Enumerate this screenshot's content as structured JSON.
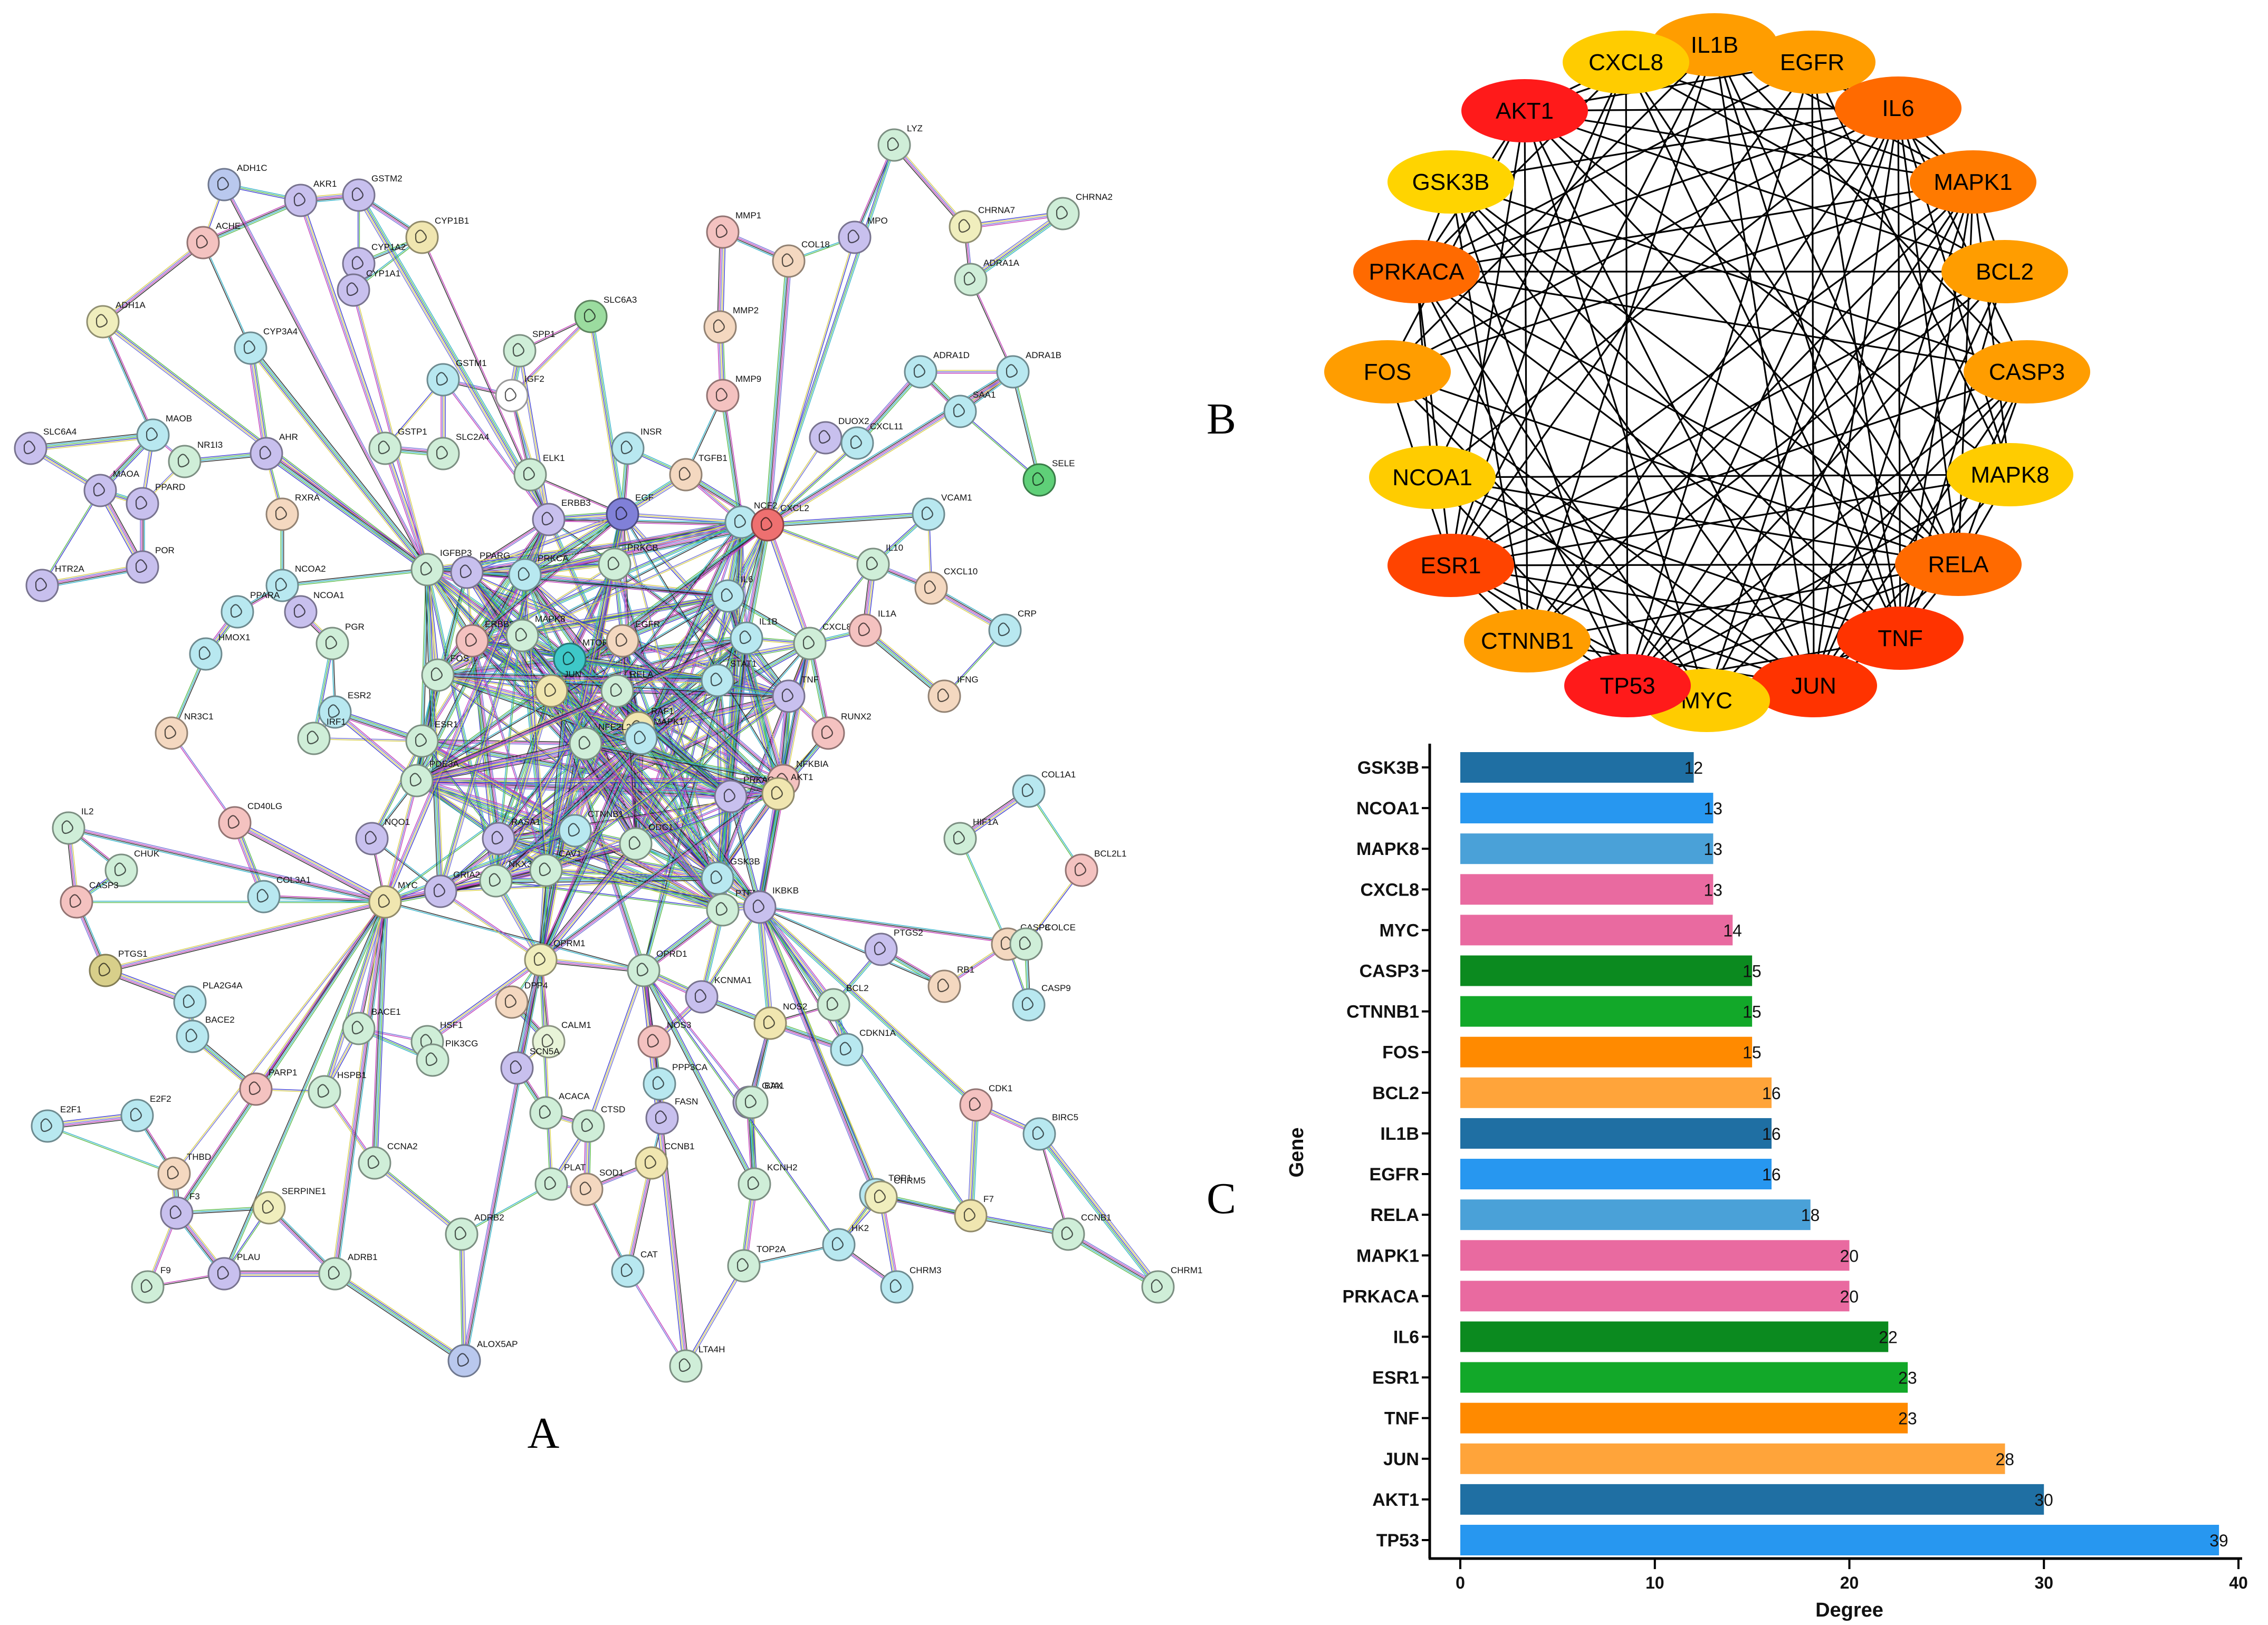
{
  "panels": {
    "a": "A",
    "b": "B",
    "c": "C"
  },
  "network_a": {
    "edge_colors": [
      "#3a3ad0",
      "#2fb0c8",
      "#c23ab8",
      "#d8cf4a",
      "#55b846",
      "#222222",
      "#7070d8"
    ],
    "nodes": [
      {
        "label": "ADH1C",
        "color": "#b9c8ee"
      },
      {
        "label": "ACHE",
        "color": "#f4c2c0"
      },
      {
        "label": "AKR1",
        "color": "#c8c0ee"
      },
      {
        "label": "GSTM2",
        "color": "#c8c0ee"
      },
      {
        "label": "CYP1B1",
        "color": "#f0e6b0"
      },
      {
        "label": "CYP1A2",
        "color": "#c8c0ee"
      },
      {
        "label": "CYP1A1",
        "color": "#c8c0ee"
      },
      {
        "label": "ADH1A",
        "color": "#f0eebd"
      },
      {
        "label": "CYP3A4",
        "color": "#b8e8f0"
      },
      {
        "label": "GSTM1",
        "color": "#b8e8f0"
      },
      {
        "label": "SPP1",
        "color": "#cfeed8"
      },
      {
        "label": "SLC6A3",
        "color": "#9bdc9f"
      },
      {
        "label": "SLC6A4",
        "color": "#c8c0ee"
      },
      {
        "label": "MAOB",
        "color": "#b8e8f0"
      },
      {
        "label": "MAOA",
        "color": "#c8c0ee"
      },
      {
        "label": "NR1I3",
        "color": "#cfeed8"
      },
      {
        "label": "AHR",
        "color": "#c8c0ee"
      },
      {
        "label": "GSTP1",
        "color": "#cfeed8"
      },
      {
        "label": "SLC2A4",
        "color": "#cfeed8"
      },
      {
        "label": "IGF2",
        "color": "#ffffff"
      },
      {
        "label": "INSR",
        "color": "#b8e8f0"
      },
      {
        "label": "HTR2A",
        "color": "#c8c0ee"
      },
      {
        "label": "PPARD",
        "color": "#c8c0ee"
      },
      {
        "label": "RXRA",
        "color": "#f4d8c0"
      },
      {
        "label": "POR",
        "color": "#c8c0ee"
      },
      {
        "label": "ELK1",
        "color": "#cfeed8"
      },
      {
        "label": "ERBB3",
        "color": "#c8c0ee"
      },
      {
        "label": "EGF",
        "color": "#8080d8"
      },
      {
        "label": "TGFB1",
        "color": "#f4d8c0"
      },
      {
        "label": "NCF2",
        "color": "#b8e8f0"
      },
      {
        "label": "CXCL2",
        "color": "#ee7070"
      },
      {
        "label": "DUOX2",
        "color": "#c8c0ee"
      },
      {
        "label": "CXCL11",
        "color": "#b8e8f0"
      },
      {
        "label": "VCAM1",
        "color": "#b8e8f0"
      },
      {
        "label": "SAA1",
        "color": "#b8e8f0"
      },
      {
        "label": "SELE",
        "color": "#5fd078"
      },
      {
        "label": "MMP1",
        "color": "#f4c2c0"
      },
      {
        "label": "COL18",
        "color": "#f4d8c0"
      },
      {
        "label": "MPO",
        "color": "#c8c0ee"
      },
      {
        "label": "LYZ",
        "color": "#cfeed8"
      },
      {
        "label": "MMP2",
        "color": "#f4d8c0"
      },
      {
        "label": "MMP9",
        "color": "#f4c2c0"
      },
      {
        "label": "CHRNA7",
        "color": "#f0eebd"
      },
      {
        "label": "CHRNA2",
        "color": "#cfeed8"
      },
      {
        "label": "ADRA1A",
        "color": "#cfeed8"
      },
      {
        "label": "ADRA1D",
        "color": "#b8e8f0"
      },
      {
        "label": "ADRA1B",
        "color": "#b8e8f0"
      },
      {
        "label": "IGFBP3",
        "color": "#cfeed8"
      },
      {
        "label": "PPARG",
        "color": "#c8c0ee"
      },
      {
        "label": "PRKCA",
        "color": "#b8e8f0"
      },
      {
        "label": "PRKCB",
        "color": "#cfeed8"
      },
      {
        "label": "IL6",
        "color": "#b8e8f0"
      },
      {
        "label": "IL10",
        "color": "#cfeed8"
      },
      {
        "label": "CXCL10",
        "color": "#f4d8c0"
      },
      {
        "label": "NCOA2",
        "color": "#b8e8f0"
      },
      {
        "label": "NCOA1",
        "color": "#c8c0ee"
      },
      {
        "label": "PPARA",
        "color": "#b8e8f0"
      },
      {
        "label": "PGR",
        "color": "#cfeed8"
      },
      {
        "label": "ERBB2",
        "color": "#f4c2c0"
      },
      {
        "label": "MAPK8",
        "color": "#cfeed8"
      },
      {
        "label": "MTOR",
        "color": "#3ec8c8"
      },
      {
        "label": "EGFR",
        "color": "#f4d8c0"
      },
      {
        "label": "IL1B",
        "color": "#b8e8f0"
      },
      {
        "label": "CXCL8",
        "color": "#cfeed8"
      },
      {
        "label": "IL1A",
        "color": "#f4c2c0"
      },
      {
        "label": "CRP",
        "color": "#b8e8f0"
      },
      {
        "label": "HMOX1",
        "color": "#b8e8f0"
      },
      {
        "label": "FOS",
        "color": "#cfeed8"
      },
      {
        "label": "JUN",
        "color": "#f0e6b0"
      },
      {
        "label": "RELA",
        "color": "#cfeed8"
      },
      {
        "label": "STAT1",
        "color": "#b8e8f0"
      },
      {
        "label": "TNF",
        "color": "#c8c0ee"
      },
      {
        "label": "IFNG",
        "color": "#f4d8c0"
      },
      {
        "label": "NR3C1",
        "color": "#f4d8c0"
      },
      {
        "label": "ESR2",
        "color": "#b8e8f0"
      },
      {
        "label": "ESR1",
        "color": "#cfeed8"
      },
      {
        "label": "RAF1",
        "color": "#f0e6b0"
      },
      {
        "label": "RUNX2",
        "color": "#f4c2c0"
      },
      {
        "label": "IRF1",
        "color": "#cfeed8"
      },
      {
        "label": "NFE2L2",
        "color": "#cfeed8"
      },
      {
        "label": "MAPK1",
        "color": "#b8e8f0"
      },
      {
        "label": "NFKBIA",
        "color": "#f4c2c0"
      },
      {
        "label": "COL1A1",
        "color": "#b8e8f0"
      },
      {
        "label": "IL2",
        "color": "#cfeed8"
      },
      {
        "label": "CD40LG",
        "color": "#f4c2c0"
      },
      {
        "label": "PDE3A",
        "color": "#cfeed8"
      },
      {
        "label": "NQO1",
        "color": "#c8c0ee"
      },
      {
        "label": "CTNNB1",
        "color": "#b8e8f0"
      },
      {
        "label": "PRKACA",
        "color": "#c8c0ee"
      },
      {
        "label": "AKT1",
        "color": "#f0e6b0"
      },
      {
        "label": "CHUK",
        "color": "#cfeed8"
      },
      {
        "label": "RASA1",
        "color": "#c8c0ee"
      },
      {
        "label": "ODC1",
        "color": "#cfeed8"
      },
      {
        "label": "HIF1A",
        "color": "#cfeed8"
      },
      {
        "label": "CASP3",
        "color": "#f4c2c0"
      },
      {
        "label": "COL3A1",
        "color": "#b8e8f0"
      },
      {
        "label": "GRIA2",
        "color": "#c8c0ee"
      },
      {
        "label": "NKX3-1",
        "color": "#cfeed8"
      },
      {
        "label": "MYC",
        "color": "#f0e6b0"
      },
      {
        "label": "CAV1",
        "color": "#cfeed8"
      },
      {
        "label": "GSK3B",
        "color": "#b8e8f0"
      },
      {
        "label": "PTEN",
        "color": "#cfeed8"
      },
      {
        "label": "IKBKB",
        "color": "#c8c0ee"
      },
      {
        "label": "BCL2L1",
        "color": "#f4c2c0"
      },
      {
        "label": "PTGS2",
        "color": "#c8c0ee"
      },
      {
        "label": "CASP8",
        "color": "#f4d8c0"
      },
      {
        "label": "PCOLCE",
        "color": "#cfeed8"
      },
      {
        "label": "PTGS1",
        "color": "#d8cf8a"
      },
      {
        "label": "OPRM1",
        "color": "#f0eebd"
      },
      {
        "label": "OPRD1",
        "color": "#cfeed8"
      },
      {
        "label": "KCNMA1",
        "color": "#c8c0ee"
      },
      {
        "label": "BCL2",
        "color": "#cfeed8"
      },
      {
        "label": "RB1",
        "color": "#f4d8c0"
      },
      {
        "label": "CASP9",
        "color": "#b8e8f0"
      },
      {
        "label": "PLA2G4A",
        "color": "#b8e8f0"
      },
      {
        "label": "BACE2",
        "color": "#b8e8f0"
      },
      {
        "label": "BACE1",
        "color": "#cfeed8"
      },
      {
        "label": "HSF1",
        "color": "#cfeed8"
      },
      {
        "label": "DPP4",
        "color": "#f4d8c0"
      },
      {
        "label": "CALM1",
        "color": "#e8f4d8"
      },
      {
        "label": "NOS3",
        "color": "#f4c2c0"
      },
      {
        "label": "NOS2",
        "color": "#f0e6b0"
      },
      {
        "label": "CDKN1A",
        "color": "#b8e8f0"
      },
      {
        "label": "PARP1",
        "color": "#f4c2c0"
      },
      {
        "label": "HSPB1",
        "color": "#cfeed8"
      },
      {
        "label": "PIK3CG",
        "color": "#cfeed8"
      },
      {
        "label": "SCN5A",
        "color": "#c8c0ee"
      },
      {
        "label": "PPP3CA",
        "color": "#b8e8f0"
      },
      {
        "label": "GJA1",
        "color": "#c8c0ee"
      },
      {
        "label": "BAX",
        "color": "#cfeed8"
      },
      {
        "label": "E2F1",
        "color": "#b8e8f0"
      },
      {
        "label": "E2F2",
        "color": "#b8e8f0"
      },
      {
        "label": "CTSD",
        "color": "#cfeed8"
      },
      {
        "label": "ACACA",
        "color": "#cfeed8"
      },
      {
        "label": "FASN",
        "color": "#c8c0ee"
      },
      {
        "label": "CCNB1",
        "color": "#f0e6b0"
      },
      {
        "label": "CDK1",
        "color": "#f4c2c0"
      },
      {
        "label": "BIRC5",
        "color": "#b8e8f0"
      },
      {
        "label": "CCNA2",
        "color": "#cfeed8"
      },
      {
        "label": "THBD",
        "color": "#f4d8c0"
      },
      {
        "label": "PLAT",
        "color": "#cfeed8"
      },
      {
        "label": "SOD1",
        "color": "#f4d8c0"
      },
      {
        "label": "KCNH2",
        "color": "#cfeed8"
      },
      {
        "label": "TOP1",
        "color": "#b8e8f0"
      },
      {
        "label": "CCNB1",
        "color": "#cfeed8"
      },
      {
        "label": "CHRM5",
        "color": "#f0eebd"
      },
      {
        "label": "F7",
        "color": "#f0e6b0"
      },
      {
        "label": "F3",
        "color": "#c8c0ee"
      },
      {
        "label": "SERPINE1",
        "color": "#f0eebd"
      },
      {
        "label": "ADRB1",
        "color": "#cfeed8"
      },
      {
        "label": "ADRB2",
        "color": "#cfeed8"
      },
      {
        "label": "CAT",
        "color": "#b8e8f0"
      },
      {
        "label": "HK2",
        "color": "#b8e8f0"
      },
      {
        "label": "TOP2A",
        "color": "#cfeed8"
      },
      {
        "label": "CHRM3",
        "color": "#b8e8f0"
      },
      {
        "label": "CHRM1",
        "color": "#cfeed8"
      },
      {
        "label": "F9",
        "color": "#cfeed8"
      },
      {
        "label": "PLAU",
        "color": "#c8c0ee"
      },
      {
        "label": "ALOX5AP",
        "color": "#b9c8ee"
      },
      {
        "label": "LTA4H",
        "color": "#cfeed8"
      },
      {
        "label": "MGAM",
        "color": "#c8c0ee"
      },
      {
        "label": "CHRM2",
        "color": "#cfeed8"
      }
    ]
  },
  "network_b": {
    "nodes": [
      {
        "label": "IL1B",
        "color": "#ff9d00"
      },
      {
        "label": "EGFR",
        "color": "#ff9d00"
      },
      {
        "label": "IL6",
        "color": "#ff6a00"
      },
      {
        "label": "MAPK1",
        "color": "#ff7a00"
      },
      {
        "label": "BCL2",
        "color": "#ff9d00"
      },
      {
        "label": "CASP3",
        "color": "#ff9d00"
      },
      {
        "label": "MAPK8",
        "color": "#ffcc00"
      },
      {
        "label": "RELA",
        "color": "#ff6a00"
      },
      {
        "label": "TNF",
        "color": "#ff3300"
      },
      {
        "label": "JUN",
        "color": "#ff3300"
      },
      {
        "label": "MYC",
        "color": "#ffcc00"
      },
      {
        "label": "TP53",
        "color": "#ff1a1a"
      },
      {
        "label": "CTNNB1",
        "color": "#ff9d00"
      },
      {
        "label": "ESR1",
        "color": "#ff4400"
      },
      {
        "label": "NCOA1",
        "color": "#ffcc00"
      },
      {
        "label": "FOS",
        "color": "#ff9d00"
      },
      {
        "label": "PRKACA",
        "color": "#ff6a00"
      },
      {
        "label": "GSK3B",
        "color": "#ffd400"
      },
      {
        "label": "AKT1",
        "color": "#ff1a1a"
      },
      {
        "label": "CXCL8",
        "color": "#ffcc00"
      }
    ],
    "edge_color": "#000000"
  },
  "chart_data": {
    "type": "bar",
    "orientation": "horizontal",
    "title": "",
    "xlabel": "Degree",
    "ylabel": "Gene",
    "xlim": [
      0,
      40
    ],
    "xticks": [
      0,
      10,
      20,
      30,
      40
    ],
    "grid": false,
    "categories": [
      "GSK3B",
      "NCOA1",
      "MAPK8",
      "CXCL8",
      "MYC",
      "CASP3",
      "CTNNB1",
      "FOS",
      "BCL2",
      "IL1B",
      "EGFR",
      "RELA",
      "MAPK1",
      "PRKACA",
      "IL6",
      "ESR1",
      "TNF",
      "JUN",
      "AKT1",
      "TP53"
    ],
    "values": [
      12,
      13,
      13,
      13,
      14,
      15,
      15,
      15,
      16,
      16,
      16,
      18,
      20,
      20,
      22,
      23,
      23,
      28,
      30,
      39
    ],
    "colors": [
      "#1f6fa3",
      "#2797f0",
      "#4aa1d8",
      "#e96aa0",
      "#e96aa0",
      "#0b8a1f",
      "#12a829",
      "#ff8a00",
      "#ffa43a",
      "#1f6fa3",
      "#2797f0",
      "#4aa1d8",
      "#e96aa0",
      "#e96aa0",
      "#0b8a1f",
      "#12a829",
      "#ff8a00",
      "#ffa43a",
      "#1f6fa3",
      "#2797f0"
    ]
  }
}
